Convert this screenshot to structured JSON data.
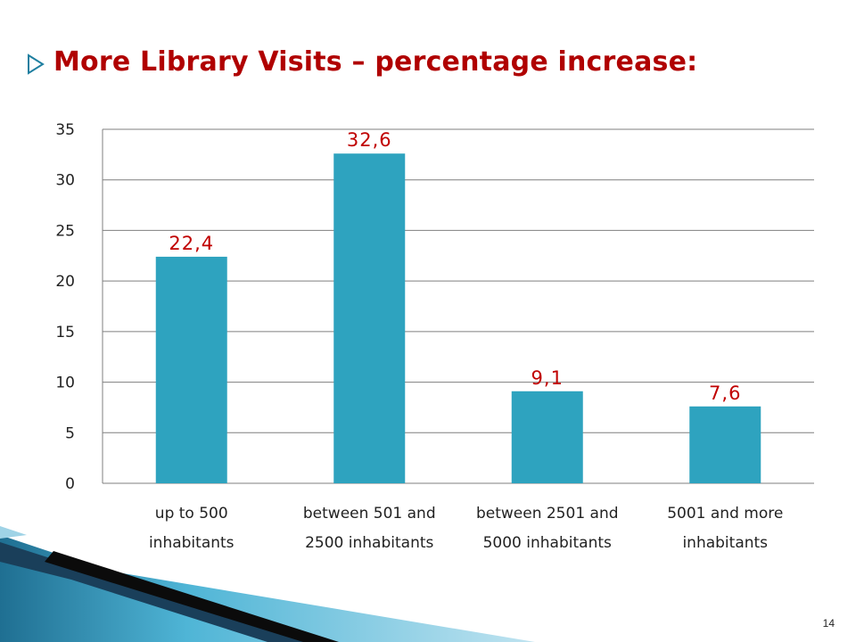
{
  "slide": {
    "title": "More Library Visits – percentage increase:",
    "page_number": "14"
  },
  "colors": {
    "bar": "#2ea3bf",
    "data_label": "#c00000",
    "title": "#b00000",
    "grid": "#7f7f7f",
    "axis_text": "#222222"
  },
  "chart_data": {
    "type": "bar",
    "title": "",
    "xlabel": "",
    "ylabel": "",
    "categories": [
      [
        "up to 500",
        "inhabitants"
      ],
      [
        "between 501 and",
        "2500 inhabitants"
      ],
      [
        "between 2501 and",
        "5000 inhabitants"
      ],
      [
        "5001 and more",
        "inhabitants"
      ]
    ],
    "values": [
      22.4,
      32.6,
      9.1,
      7.6
    ],
    "data_labels": [
      "22,4",
      "32,6",
      "9,1",
      "7,6"
    ],
    "ylim": [
      0,
      35
    ],
    "yticks": [
      0,
      5,
      10,
      15,
      20,
      25,
      30,
      35
    ],
    "grid": true,
    "legend": "none"
  }
}
